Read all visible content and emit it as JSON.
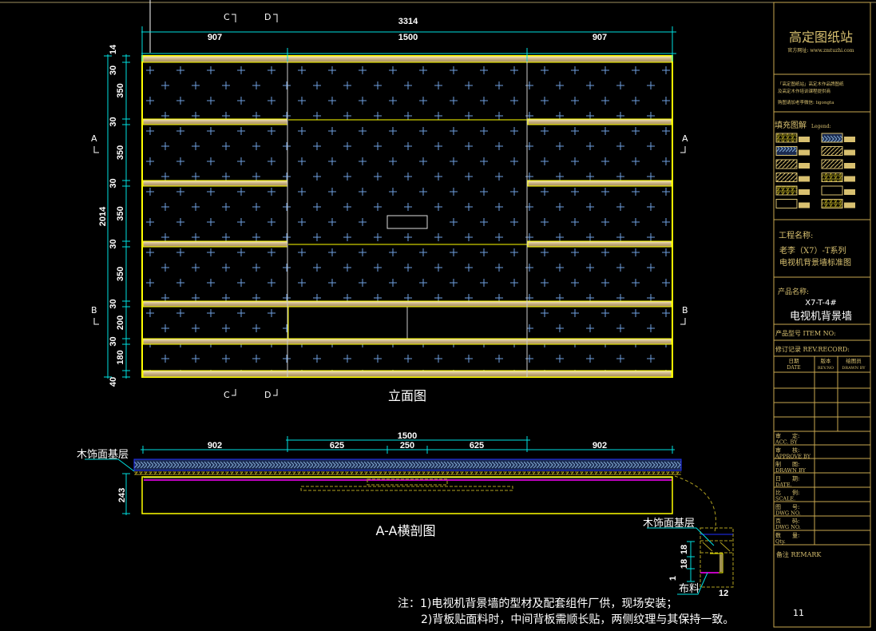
{
  "elevation": {
    "title": "立面图",
    "overall_width": "3314",
    "widths": [
      "907",
      "1500",
      "907"
    ],
    "overall_height": "2014",
    "heights": [
      "14",
      "30",
      "350",
      "30",
      "350",
      "30",
      "350",
      "30",
      "350",
      "30",
      "200",
      "30",
      "180",
      "40"
    ],
    "section_marks": {
      "a": "A",
      "b": "B",
      "c": "C",
      "d": "D"
    }
  },
  "section": {
    "title": "A-A横剖图",
    "overall": "1500",
    "widths": [
      "902",
      "625",
      "250",
      "625",
      "902"
    ],
    "depth": "243",
    "label_base": "木饰面基层"
  },
  "detail": {
    "label_base": "木饰面基层",
    "label_fabric": "布料",
    "dims": [
      "18",
      "18",
      "1",
      "12"
    ]
  },
  "notes": {
    "line1": "注：1)电视机背景墙的型材及配套组件厂供，现场安装；",
    "line2": "2)背板贴面料时，中间背板需顺长贴，两侧纹理与其保持一致。"
  },
  "title_block": {
    "brand": "高定图纸站",
    "website": "官方网址: www.zmtuzhi.com",
    "desc1": "「高定图纸站」高定木作品牌图纸",
    "desc2": "及高定木作培训课程提供商",
    "contact": "购图请加老李微信: ligongta",
    "legend_title": "填充图解",
    "legend_sub": "Legend:",
    "project_label": "工程名称:",
    "project_line1": "老李（X7）-T系列",
    "project_line2": "电视机背景墙标准图",
    "product_label": "产品名称:",
    "product_code": "X7-T-4#",
    "product_name": "电视机背景墙",
    "item_no": "产品型号 ITEM NO:",
    "rev_record": "修订记录 REV.RECORD:",
    "rev_cols": [
      {
        "cn": "日期",
        "en": "DATE"
      },
      {
        "cn": "版本",
        "en": "REV.NO"
      },
      {
        "cn": "绘图员",
        "en": "DRAWN BY"
      }
    ],
    "sign_rows": [
      {
        "cn": "审　　定:",
        "en": "ACC. BY"
      },
      {
        "cn": "审　　核:",
        "en": "APPROVE BY"
      },
      {
        "cn": "制　　图:",
        "en": "DRAWN BY"
      },
      {
        "cn": "日　　期:",
        "en": "DATE."
      },
      {
        "cn": "比　　例:",
        "en": "SCALE."
      },
      {
        "cn": "图　　号:",
        "en": "DWG NO."
      },
      {
        "cn": "页　　码:",
        "en": "DWG NO."
      },
      {
        "cn": "数　　量:",
        "en": "Qty."
      }
    ],
    "remark": "备注 REMARK",
    "page": "11"
  },
  "colors": {
    "dimension": "#00e0e0",
    "frame": "#ffff00",
    "rail": "#d8c49a",
    "panel_cross": "#6fa0e0",
    "border": "#c8a850",
    "fabric_line": "#ff00ff"
  }
}
